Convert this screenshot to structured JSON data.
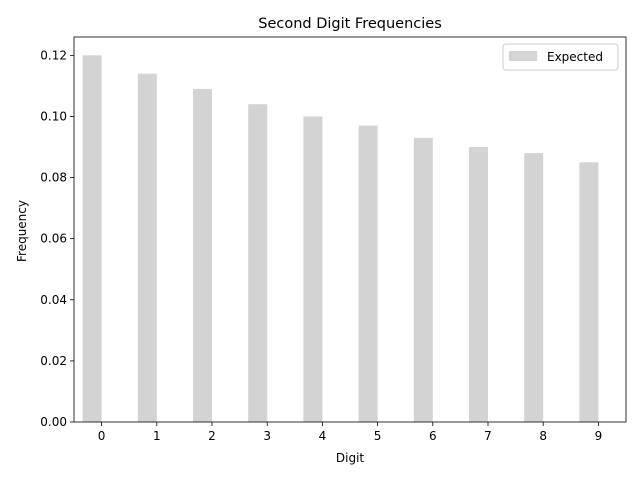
{
  "chart_data": {
    "type": "bar",
    "title": "Second Digit Frequencies",
    "xlabel": "Digit",
    "ylabel": "Frequency",
    "categories": [
      "0",
      "1",
      "2",
      "3",
      "4",
      "5",
      "6",
      "7",
      "8",
      "9"
    ],
    "series": [
      {
        "name": "Expected",
        "color": "#d3d3d3",
        "values": [
          0.12,
          0.114,
          0.109,
          0.104,
          0.1,
          0.097,
          0.093,
          0.09,
          0.088,
          0.085
        ]
      }
    ],
    "ylim": [
      0,
      0.126
    ],
    "yticks": [
      "0.00",
      "0.02",
      "0.04",
      "0.06",
      "0.08",
      "0.10",
      "0.12"
    ],
    "grid": false,
    "legend": "top-right"
  }
}
